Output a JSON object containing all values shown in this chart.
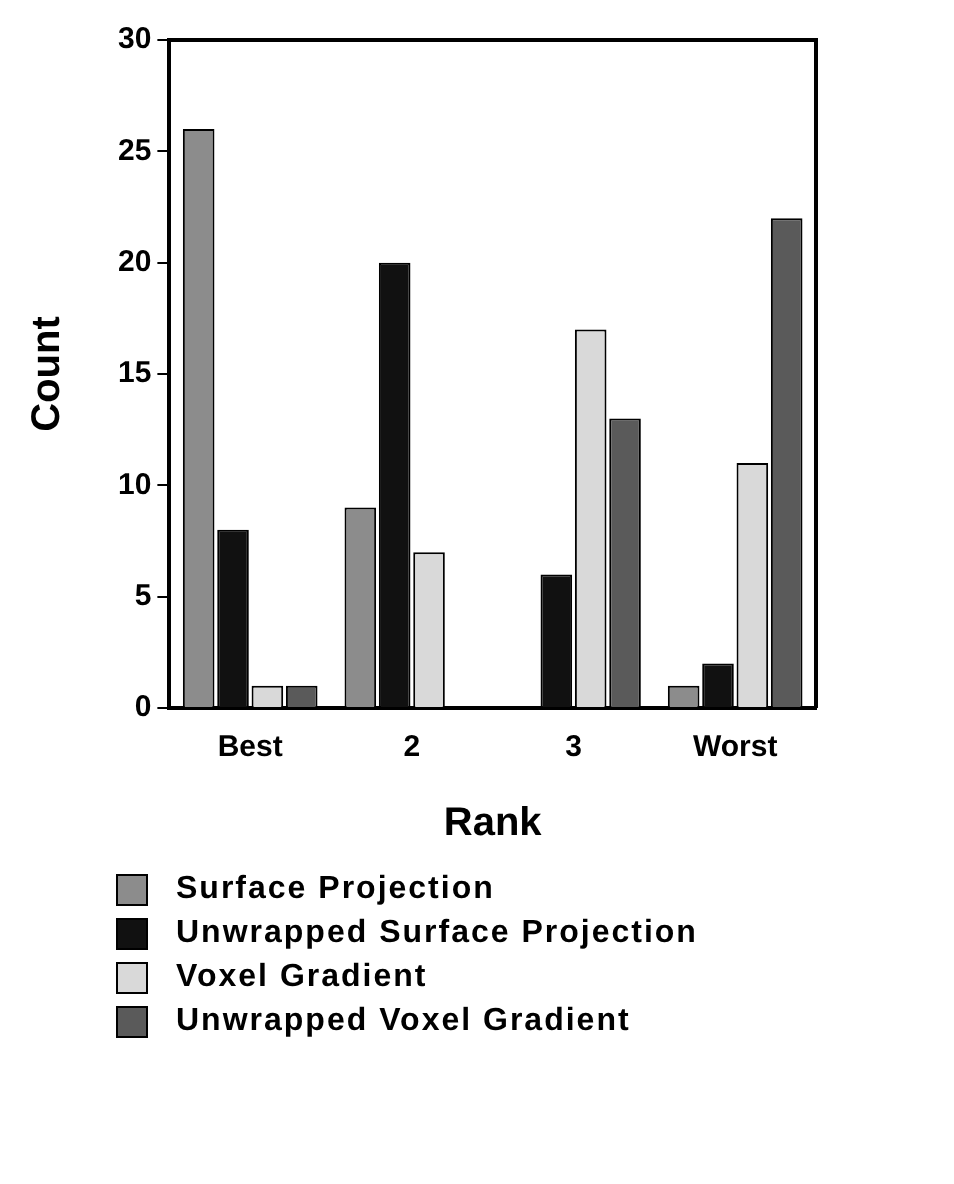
{
  "chart_data": {
    "type": "bar",
    "xlabel": "Rank",
    "ylabel": "Count",
    "categories": [
      "Best",
      "2",
      "3",
      "Worst"
    ],
    "series": [
      {
        "name": "Surface Projection",
        "color": "#8c8c8c",
        "values": [
          26,
          9,
          0,
          1
        ]
      },
      {
        "name": "Unwrapped Surface Projection",
        "color": "#111111",
        "values": [
          8,
          20,
          6,
          2
        ]
      },
      {
        "name": "Voxel Gradient",
        "color": "#d9d9d9",
        "values": [
          1,
          7,
          17,
          11
        ]
      },
      {
        "name": "Unwrapped Voxel Gradient",
        "color": "#5a5a5a",
        "values": [
          1,
          0,
          13,
          22
        ]
      }
    ],
    "ylim": [
      0,
      30
    ],
    "yticks": [
      0,
      5,
      10,
      15,
      20,
      25,
      30
    ],
    "grid": false,
    "legend": "bottom"
  }
}
